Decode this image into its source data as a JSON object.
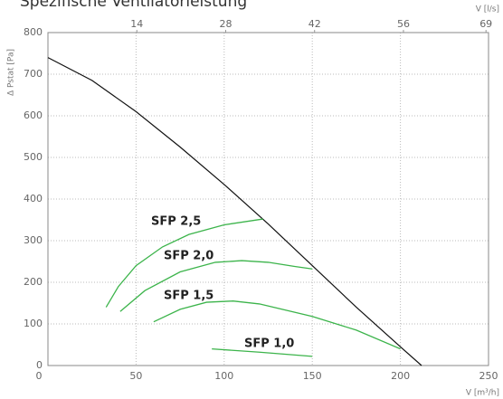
{
  "chart_data": {
    "type": "line",
    "title": "Spezifische Ventilatorleistung",
    "y_label": "Δ Pstat [Pa]",
    "x_label": "V [m³/h]",
    "x2_label": "V [l/s]",
    "xlim": [
      0,
      250
    ],
    "xticks": [
      0,
      50,
      100,
      150,
      200,
      250
    ],
    "x2lim": [
      0,
      69.4
    ],
    "x2ticks": [
      14,
      28,
      42,
      56,
      69
    ],
    "ylim": [
      0,
      800
    ],
    "yticks": [
      0,
      100,
      200,
      300,
      400,
      500,
      600,
      700,
      800
    ],
    "grid": true,
    "series": [
      {
        "color": "#111111",
        "x": [
          0,
          25,
          50,
          75,
          100,
          125,
          150,
          175,
          200,
          212
        ],
        "values": [
          740,
          685,
          610,
          525,
          435,
          340,
          240,
          140,
          45,
          0
        ]
      },
      {
        "name": "SFP 2,5",
        "color": "#3cb44b",
        "x": [
          33,
          40,
          50,
          65,
          80,
          100,
          122
        ],
        "values": [
          140,
          190,
          240,
          285,
          315,
          338,
          352
        ]
      },
      {
        "name": "SFP 2,0",
        "color": "#3cb44b",
        "x": [
          41,
          55,
          75,
          95,
          110,
          125,
          140,
          150
        ],
        "values": [
          130,
          180,
          225,
          248,
          252,
          248,
          238,
          232
        ]
      },
      {
        "name": "SFP 1,5",
        "color": "#3cb44b",
        "x": [
          60,
          75,
          90,
          105,
          120,
          150,
          175,
          200
        ],
        "values": [
          105,
          135,
          152,
          155,
          148,
          118,
          85,
          40
        ]
      },
      {
        "name": "SFP 1,0",
        "color": "#3cb44b",
        "x": [
          93,
          120,
          150
        ],
        "values": [
          40,
          32,
          22
        ]
      }
    ]
  }
}
